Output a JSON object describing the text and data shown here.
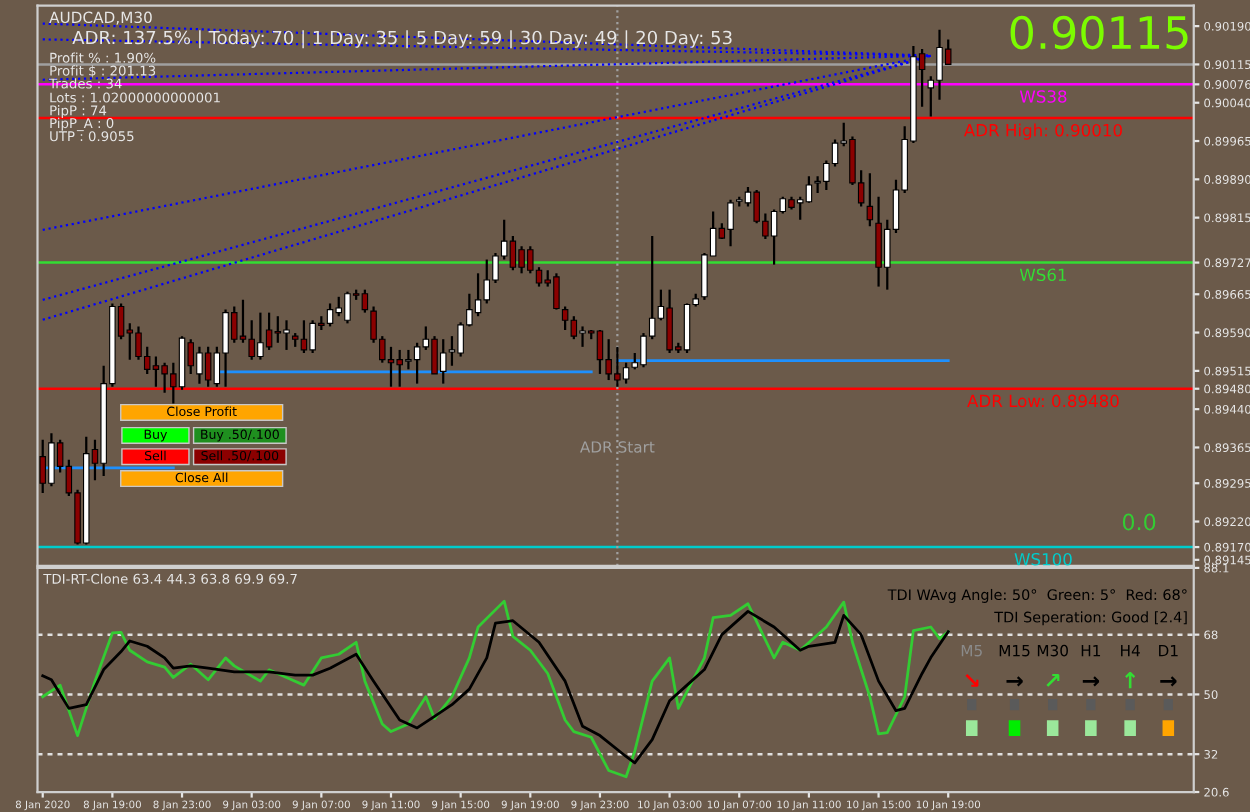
{
  "chart_data": [
    {
      "type": "candlestick",
      "x": [
        "2020-01-08T15:00",
        "2020-01-08T15:30",
        "2020-01-08T16:00",
        "2020-01-08T16:30",
        "2020-01-08T17:00",
        "2020-01-08T17:30",
        "2020-01-08T18:00",
        "2020-01-08T18:30",
        "2020-01-08T19:00",
        "2020-01-08T19:30",
        "2020-01-08T20:00",
        "2020-01-08T20:30",
        "2020-01-08T21:00",
        "2020-01-08T21:30",
        "2020-01-08T22:00",
        "2020-01-08T22:30",
        "2020-01-08T23:00",
        "2020-01-08T23:30",
        "2020-01-09T00:00",
        "2020-01-09T00:30",
        "2020-01-09T01:00",
        "2020-01-09T01:30",
        "2020-01-09T02:00",
        "2020-01-09T02:30",
        "2020-01-09T03:00",
        "2020-01-09T03:30",
        "2020-01-09T04:00",
        "2020-01-09T04:30",
        "2020-01-09T05:00",
        "2020-01-09T05:30",
        "2020-01-09T06:00",
        "2020-01-09T06:30",
        "2020-01-09T07:00",
        "2020-01-09T07:30",
        "2020-01-09T08:00",
        "2020-01-09T08:30",
        "2020-01-09T09:00",
        "2020-01-09T09:30",
        "2020-01-09T10:00",
        "2020-01-09T10:30",
        "2020-01-09T11:00",
        "2020-01-09T11:30",
        "2020-01-09T12:00",
        "2020-01-09T12:30",
        "2020-01-09T13:00",
        "2020-01-09T13:30",
        "2020-01-09T14:00",
        "2020-01-09T14:30",
        "2020-01-09T15:00",
        "2020-01-09T15:30",
        "2020-01-09T16:00",
        "2020-01-09T16:30",
        "2020-01-09T17:00",
        "2020-01-09T17:30",
        "2020-01-09T18:00",
        "2020-01-09T18:30",
        "2020-01-09T19:00",
        "2020-01-09T19:30",
        "2020-01-09T20:00",
        "2020-01-09T20:30",
        "2020-01-09T21:00",
        "2020-01-09T21:30",
        "2020-01-09T22:00",
        "2020-01-09T22:30",
        "2020-01-09T23:00",
        "2020-01-09T23:30",
        "2020-01-10T00:00",
        "2020-01-10T00:30",
        "2020-01-10T01:00",
        "2020-01-10T01:30",
        "2020-01-10T02:00",
        "2020-01-10T02:30",
        "2020-01-10T03:00",
        "2020-01-10T03:30",
        "2020-01-10T04:00",
        "2020-01-10T04:30",
        "2020-01-10T05:00",
        "2020-01-10T05:30",
        "2020-01-10T06:00",
        "2020-01-10T06:30",
        "2020-01-10T07:00",
        "2020-01-10T07:30",
        "2020-01-10T08:00",
        "2020-01-10T08:30",
        "2020-01-10T09:00",
        "2020-01-10T09:30",
        "2020-01-10T10:00",
        "2020-01-10T10:30",
        "2020-01-10T11:00",
        "2020-01-10T11:30",
        "2020-01-10T12:00",
        "2020-01-10T12:30",
        "2020-01-10T13:00",
        "2020-01-10T13:30",
        "2020-01-10T14:00",
        "2020-01-10T14:30",
        "2020-01-10T15:00",
        "2020-01-10T15:30",
        "2020-01-10T16:00",
        "2020-01-10T16:30",
        "2020-01-10T17:00",
        "2020-01-10T17:30",
        "2020-01-10T18:00",
        "2020-01-10T18:30",
        "2020-01-10T19:00"
      ],
      "ohlc": [
        [
          0.89347,
          0.8938,
          0.89276,
          0.89295
        ],
        [
          0.89295,
          0.89393,
          0.89289,
          0.89374
        ],
        [
          0.89374,
          0.8938,
          0.89316,
          0.89328
        ],
        [
          0.89328,
          0.89341,
          0.8927,
          0.89276
        ],
        [
          0.89276,
          0.89282,
          0.89175,
          0.89178
        ],
        [
          0.89178,
          0.89386,
          0.89175,
          0.89353
        ],
        [
          0.89361,
          0.8938,
          0.89301,
          0.89334
        ],
        [
          0.89334,
          0.89525,
          0.89309,
          0.8949
        ],
        [
          0.8949,
          0.89647,
          0.89484,
          0.89641
        ],
        [
          0.89641,
          0.89647,
          0.89577,
          0.89583
        ],
        [
          0.89595,
          0.89608,
          0.89537,
          0.89589
        ],
        [
          0.89589,
          0.89602,
          0.89537,
          0.89543
        ],
        [
          0.89543,
          0.89562,
          0.89509,
          0.89518
        ],
        [
          0.89525,
          0.89543,
          0.89484,
          0.89518
        ],
        [
          0.89525,
          0.89531,
          0.89472,
          0.89509
        ],
        [
          0.89509,
          0.89531,
          0.89451,
          0.89484
        ],
        [
          0.89484,
          0.89583,
          0.89478,
          0.89579
        ],
        [
          0.8957,
          0.89577,
          0.89509,
          0.89525
        ],
        [
          0.89509,
          0.89562,
          0.8949,
          0.8955
        ],
        [
          0.8955,
          0.89562,
          0.89484,
          0.89497
        ],
        [
          0.8949,
          0.89562,
          0.89484,
          0.8955
        ],
        [
          0.8955,
          0.89635,
          0.89484,
          0.89629
        ],
        [
          0.89629,
          0.89641,
          0.8957,
          0.89577
        ],
        [
          0.89583,
          0.89654,
          0.8957,
          0.89577
        ],
        [
          0.89577,
          0.89614,
          0.89537,
          0.89543
        ],
        [
          0.89543,
          0.89629,
          0.89537,
          0.8957
        ],
        [
          0.89595,
          0.89629,
          0.89556,
          0.89562
        ],
        [
          0.89592,
          0.89622,
          0.8957,
          0.89589
        ],
        [
          0.89589,
          0.89614,
          0.89556,
          0.89595
        ],
        [
          0.89583,
          0.89589,
          0.89562,
          0.89577
        ],
        [
          0.89577,
          0.89614,
          0.8955,
          0.89556
        ],
        [
          0.89556,
          0.89614,
          0.8955,
          0.89608
        ],
        [
          0.89608,
          0.89622,
          0.89595,
          0.89604
        ],
        [
          0.89608,
          0.89647,
          0.89602,
          0.89635
        ],
        [
          0.89629,
          0.8966,
          0.89622,
          0.89638
        ],
        [
          0.89614,
          0.8967,
          0.89608,
          0.89666
        ],
        [
          0.89666,
          0.89674,
          0.89654,
          0.89663
        ],
        [
          0.89666,
          0.89674,
          0.89629,
          0.89635
        ],
        [
          0.89632,
          0.89641,
          0.8957,
          0.89577
        ],
        [
          0.89577,
          0.89583,
          0.89531,
          0.89537
        ],
        [
          0.89537,
          0.89562,
          0.89484,
          0.89531
        ],
        [
          0.89537,
          0.89556,
          0.89484,
          0.89527
        ],
        [
          0.89534,
          0.89556,
          0.89518,
          0.89537
        ],
        [
          0.89537,
          0.8957,
          0.8949,
          0.89562
        ],
        [
          0.89562,
          0.89602,
          0.89556,
          0.89577
        ],
        [
          0.89577,
          0.89583,
          0.89509,
          0.89509
        ],
        [
          0.89514,
          0.89577,
          0.8949,
          0.8955
        ],
        [
          0.89552,
          0.89583,
          0.89525,
          0.89556
        ],
        [
          0.8955,
          0.8961,
          0.89543,
          0.89605
        ],
        [
          0.89605,
          0.89666,
          0.89602,
          0.89635
        ],
        [
          0.89629,
          0.89706,
          0.89622,
          0.89654
        ],
        [
          0.89654,
          0.89733,
          0.89647,
          0.89693
        ],
        [
          0.89693,
          0.89746,
          0.89687,
          0.8974
        ],
        [
          0.8974,
          0.89811,
          0.89733,
          0.89769
        ],
        [
          0.89769,
          0.89779,
          0.89712,
          0.89718
        ],
        [
          0.89752,
          0.89759,
          0.89706,
          0.89718
        ],
        [
          0.89752,
          0.89759,
          0.89706,
          0.89712
        ],
        [
          0.89712,
          0.89718,
          0.8968,
          0.89687
        ],
        [
          0.89693,
          0.89712,
          0.8968,
          0.89687
        ],
        [
          0.89699,
          0.89706,
          0.89635,
          0.89637
        ],
        [
          0.89635,
          0.89641,
          0.89595,
          0.89614
        ],
        [
          0.89614,
          0.89622,
          0.89577,
          0.89583
        ],
        [
          0.89589,
          0.89602,
          0.89562,
          0.89593
        ],
        [
          0.89593,
          0.89595,
          0.89577,
          0.89589
        ],
        [
          0.89593,
          0.89595,
          0.89509,
          0.89537
        ],
        [
          0.89537,
          0.89577,
          0.89497,
          0.89509
        ],
        [
          0.89509,
          0.89562,
          0.89484,
          0.89497
        ],
        [
          0.89499,
          0.89531,
          0.8949,
          0.89521
        ],
        [
          0.89522,
          0.8955,
          0.89518,
          0.89531
        ],
        [
          0.89527,
          0.89589,
          0.89522,
          0.89583
        ],
        [
          0.89583,
          0.89779,
          0.89577,
          0.89618
        ],
        [
          0.89618,
          0.89674,
          0.89614,
          0.89641
        ],
        [
          0.89638,
          0.89674,
          0.8955,
          0.89556
        ],
        [
          0.89562,
          0.8957,
          0.8955,
          0.89556
        ],
        [
          0.89556,
          0.89647,
          0.8955,
          0.89645
        ],
        [
          0.89645,
          0.89666,
          0.89641,
          0.89656
        ],
        [
          0.8966,
          0.89746,
          0.89654,
          0.89742
        ],
        [
          0.8974,
          0.89827,
          0.8974,
          0.89794
        ],
        [
          0.89794,
          0.89804,
          0.89773,
          0.89775
        ],
        [
          0.89792,
          0.8985,
          0.89759,
          0.89844
        ],
        [
          0.89847,
          0.89856,
          0.89837,
          0.8985
        ],
        [
          0.89844,
          0.89875,
          0.89837,
          0.89865
        ],
        [
          0.89865,
          0.89869,
          0.89804,
          0.89808
        ],
        [
          0.89808,
          0.89823,
          0.89773,
          0.89779
        ],
        [
          0.89779,
          0.89831,
          0.89723,
          0.89827
        ],
        [
          0.89827,
          0.89856,
          0.89823,
          0.89852
        ],
        [
          0.8985,
          0.89856,
          0.89831,
          0.89835
        ],
        [
          0.89844,
          0.89856,
          0.89811,
          0.8985
        ],
        [
          0.89846,
          0.89896,
          0.89844,
          0.89879
        ],
        [
          0.89883,
          0.89896,
          0.89863,
          0.89886
        ],
        [
          0.89886,
          0.89927,
          0.89869,
          0.89921
        ],
        [
          0.89921,
          0.89968,
          0.89915,
          0.89961
        ],
        [
          0.89961,
          0.90001,
          0.89955,
          0.89965
        ],
        [
          0.89968,
          0.89974,
          0.89879,
          0.89883
        ],
        [
          0.89883,
          0.89908,
          0.89837,
          0.89844
        ],
        [
          0.89837,
          0.89902,
          0.89798,
          0.89811
        ],
        [
          0.89804,
          0.89856,
          0.8968,
          0.89718
        ],
        [
          0.89718,
          0.89811,
          0.89674,
          0.89792
        ],
        [
          0.89792,
          0.89889,
          0.89785,
          0.89869
        ],
        [
          0.89869,
          0.89994,
          0.89863,
          0.89968
        ],
        [
          0.89965,
          0.90151,
          0.89961,
          0.9013
        ],
        [
          0.90136,
          0.90145,
          0.90032,
          0.90105
        ],
        [
          0.90069,
          0.90092,
          0.90013,
          0.90084
        ],
        [
          0.90084,
          0.90183,
          0.90046,
          0.90148
        ],
        [
          0.90145,
          0.90164,
          0.90114,
          0.90115
        ]
      ],
      "series": [
        {
          "type": "line",
          "color": "#1e90ff",
          "line_style": "solid",
          "x": [
            "2020-01-08T15:00",
            "2020-01-08T22:30"
          ],
          "values": [
            0.89325,
            0.89325
          ]
        },
        {
          "type": "line",
          "color": "#1e90ff",
          "line_style": "solid",
          "x": [
            "2020-01-09T01:00",
            "2020-01-09T22:30"
          ],
          "values": [
            0.89513,
            0.89513
          ]
        },
        {
          "type": "line",
          "color": "#1e90ff",
          "line_style": "solid",
          "x": [
            "2020-01-10T00:00",
            "2020-01-10T19:00"
          ],
          "values": [
            0.89535,
            0.89535
          ]
        },
        {
          "type": "line",
          "color": "#0000ff",
          "line_style": "dotted",
          "x": [
            "2020-01-08T15:00",
            "2020-01-10T18:00"
          ],
          "values": [
            0.90195,
            0.90132
          ]
        },
        {
          "type": "line",
          "color": "#0000ff",
          "line_style": "dotted",
          "x": [
            "2020-01-08T15:00",
            "2020-01-10T18:00"
          ],
          "values": [
            0.90164,
            0.90132
          ]
        },
        {
          "type": "line",
          "color": "#0000ff",
          "line_style": "dotted",
          "x": [
            "2020-01-08T15:00",
            "2020-01-10T18:00"
          ],
          "values": [
            0.90085,
            0.90132
          ]
        },
        {
          "type": "line",
          "color": "#0000ff",
          "line_style": "dotted",
          "x": [
            "2020-01-08T15:00",
            "2020-01-10T18:00"
          ],
          "values": [
            0.89791,
            0.90132
          ]
        },
        {
          "type": "line",
          "color": "#0000ff",
          "line_style": "dotted",
          "x": [
            "2020-01-08T15:00",
            "2020-01-10T18:00"
          ],
          "values": [
            0.89654,
            0.90132
          ]
        },
        {
          "type": "line",
          "color": "#0000ff",
          "line_style": "dotted",
          "x": [
            "2020-01-08T15:00",
            "2020-01-10T18:00"
          ],
          "values": [
            0.89615,
            0.90132
          ]
        }
      ],
      "xlim": [
        "2020-01-08T14:42",
        "2020-01-11T09:06"
      ],
      "ylim": [
        0.89133,
        0.9023
      ],
      "yticks": [
        0.89145,
        {
          "value": 0.8917,
          "label": "0.89170"
        },
        {
          "value": 0.8922,
          "label": "0.89220"
        },
        0.89295,
        0.89365,
        {
          "value": 0.8944,
          "label": "0.89440"
        },
        {
          "value": 0.8948,
          "label": "0.89480"
        },
        0.89515,
        {
          "value": 0.8959,
          "label": "0.89590"
        },
        0.89665,
        0.89727,
        0.89815,
        {
          "value": 0.8989,
          "label": "0.89890"
        },
        0.89965,
        {
          "value": 0.9004,
          "label": "0.90040"
        },
        0.90076,
        0.90115,
        {
          "value": 0.9019,
          "label": "0.90190"
        }
      ],
      "tick_labels": "y",
      "ref_lines": [
        {
          "axis": "y",
          "value": 0.90115,
          "label": null,
          "color": "#a0a0a0",
          "line_style": "solid"
        },
        {
          "axis": "y",
          "value": 0.90076,
          "label": "WS38",
          "color": "#ff00ff",
          "line_style": "solid"
        },
        {
          "axis": "y",
          "value": 0.9001,
          "label": "ADR High: 0.90010",
          "color": "#ff0000",
          "line_style": "solid"
        },
        {
          "axis": "y",
          "value": 0.89727,
          "label": "WS61",
          "color": "#33dd33",
          "line_style": "solid"
        },
        {
          "axis": "y",
          "value": 0.8948,
          "label": "ADR Low: 0.89480",
          "color": "#ff0000",
          "line_style": "solid"
        },
        {
          "axis": "y",
          "value": 0.8917,
          "label": "WS100",
          "color": "#00cccc",
          "line_style": "solid"
        },
        {
          "axis": "x",
          "value": "2020-01-10T00:00",
          "label": "ADR Start",
          "color": "#a0a0a0",
          "line_style": "dotted"
        }
      ],
      "annotations": [
        "AUDCAD,M30",
        "ADR: 137.5% | Today: 70 | 1 Day: 35 | 5 Day: 59 | 30 Day: 49 | 20 Day: 53",
        "Profit % : 1.90%",
        "Profit $ : 201.13",
        "Trades : 34",
        "Lots : 1.02000000000001",
        "PipP : 74",
        "PipP_A : 0",
        "UTP : 0.9055",
        "0.90115",
        "0.0",
        "Close Profit",
        "Buy",
        "Buy .50/.100",
        "Sell",
        "Sell .50/.100",
        "Close All"
      ]
    },
    {
      "type": "line",
      "series": [
        {
          "color": "#33cc33",
          "x": [
            "2020-01-08T15:00",
            "2020-01-08T16:00",
            "2020-01-08T17:00",
            "2020-01-08T18:00",
            "2020-01-08T19:00",
            "2020-01-08T19:30",
            "2020-01-08T20:00",
            "2020-01-08T21:00",
            "2020-01-08T22:00",
            "2020-01-08T22:30",
            "2020-01-08T23:30",
            "2020-01-09T00:30",
            "2020-01-09T01:30",
            "2020-01-09T02:00",
            "2020-01-09T03:30",
            "2020-01-09T04:00",
            "2020-01-09T05:00",
            "2020-01-09T06:00",
            "2020-01-09T07:00",
            "2020-01-09T08:00",
            "2020-01-09T09:00",
            "2020-01-09T09:30",
            "2020-01-09T10:30",
            "2020-01-09T11:00",
            "2020-01-09T12:00",
            "2020-01-09T13:00",
            "2020-01-09T13:30",
            "2020-01-09T14:30",
            "2020-01-09T15:30",
            "2020-01-09T16:00",
            "2020-01-09T17:30",
            "2020-01-09T18:00",
            "2020-01-09T19:00",
            "2020-01-09T20:00",
            "2020-01-09T21:00",
            "2020-01-09T21:30",
            "2020-01-09T22:30",
            "2020-01-09T23:30",
            "2020-01-10T00:30",
            "2020-01-10T01:00",
            "2020-01-10T02:00",
            "2020-01-10T03:00",
            "2020-01-10T03:30",
            "2020-01-10T05:00",
            "2020-01-10T05:30",
            "2020-01-10T06:30",
            "2020-01-10T07:30",
            "2020-01-10T09:00",
            "2020-01-10T09:30",
            "2020-01-10T10:30",
            "2020-01-10T12:00",
            "2020-01-10T13:00",
            "2020-01-10T13:30",
            "2020-01-10T14:30",
            "2020-01-10T15:00",
            "2020-01-10T15:30",
            "2020-01-10T16:30",
            "2020-01-10T17:00",
            "2020-01-10T18:00",
            "2020-01-10T18:30",
            "2020-01-10T19:00"
          ],
          "values": [
            49.3,
            52.8,
            37.6,
            54.0,
            68.5,
            68.7,
            63.3,
            59.8,
            58.2,
            55.1,
            59.1,
            54.4,
            61.0,
            58.6,
            54.0,
            57.4,
            55.1,
            52.8,
            61.0,
            62.1,
            65.7,
            54.0,
            41.1,
            38.8,
            41.1,
            49.3,
            42.7,
            49.3,
            61.0,
            70.3,
            78.1,
            67.5,
            63.3,
            56.3,
            42.3,
            38.8,
            37.1,
            27.1,
            25.2,
            32.9,
            54.0,
            61.0,
            45.8,
            61.0,
            73.1,
            73.8,
            77.3,
            61.0,
            65.7,
            63.3,
            70.3,
            77.8,
            65.7,
            49.3,
            38.1,
            38.5,
            49.3,
            69.2,
            70.3,
            66.8,
            68.9
          ]
        },
        {
          "color": "#000000",
          "x": [
            "2020-01-08T15:00",
            "2020-01-08T15:30",
            "2020-01-08T16:30",
            "2020-01-08T17:30",
            "2020-01-08T18:30",
            "2020-01-08T19:30",
            "2020-01-08T20:00",
            "2020-01-08T21:00",
            "2020-01-08T22:00",
            "2020-01-08T22:30",
            "2020-01-08T23:30",
            "2020-01-09T00:30",
            "2020-01-09T02:00",
            "2020-01-09T04:00",
            "2020-01-09T05:30",
            "2020-01-09T06:30",
            "2020-01-09T07:30",
            "2020-01-09T09:00",
            "2020-01-09T10:00",
            "2020-01-09T11:30",
            "2020-01-09T12:30",
            "2020-01-09T13:30",
            "2020-01-09T14:30",
            "2020-01-09T15:30",
            "2020-01-09T16:30",
            "2020-01-09T17:00",
            "2020-01-09T18:00",
            "2020-01-09T19:30",
            "2020-01-09T21:00",
            "2020-01-09T22:00",
            "2020-01-09T23:00",
            "2020-01-10T00:30",
            "2020-01-10T01:00",
            "2020-01-10T02:00",
            "2020-01-10T03:00",
            "2020-01-10T04:00",
            "2020-01-10T05:00",
            "2020-01-10T06:00",
            "2020-01-10T07:30",
            "2020-01-10T09:00",
            "2020-01-10T10:30",
            "2020-01-10T11:00",
            "2020-01-10T12:30",
            "2020-01-10T13:00",
            "2020-01-10T14:00",
            "2020-01-10T15:00",
            "2020-01-10T16:00",
            "2020-01-10T16:30",
            "2020-01-10T17:30",
            "2020-01-10T18:00",
            "2020-01-10T19:00"
          ],
          "values": [
            55.6,
            54.4,
            45.8,
            46.9,
            57.5,
            62.9,
            66.1,
            64.5,
            61.0,
            57.9,
            58.6,
            57.9,
            56.8,
            56.8,
            55.8,
            55.8,
            57.9,
            62.1,
            54.0,
            42.3,
            39.9,
            43.4,
            46.9,
            51.6,
            61.0,
            71.5,
            72.2,
            65.7,
            54.0,
            40.4,
            37.6,
            31.3,
            29.4,
            36.4,
            48.1,
            52.8,
            57.5,
            68.0,
            75.0,
            70.3,
            63.3,
            64.5,
            65.7,
            73.8,
            68.0,
            54.0,
            45.1,
            45.8,
            56.3,
            61.1,
            68.9
          ]
        }
      ],
      "xlim": [
        "2020-01-08T14:42",
        "2020-01-11T09:06"
      ],
      "xticks": [
        {
          "value": "2020-01-08T15:00",
          "label": "8 Jan 2020"
        },
        {
          "value": "2020-01-08T19:00",
          "label": "8 Jan 19:00"
        },
        {
          "value": "2020-01-08T23:00",
          "label": "8 Jan 23:00"
        },
        {
          "value": "2020-01-09T03:00",
          "label": "9 Jan 03:00"
        },
        {
          "value": "2020-01-09T07:00",
          "label": "9 Jan 07:00"
        },
        {
          "value": "2020-01-09T11:00",
          "label": "9 Jan 11:00"
        },
        {
          "value": "2020-01-09T15:00",
          "label": "9 Jan 15:00"
        },
        {
          "value": "2020-01-09T19:00",
          "label": "9 Jan 19:00"
        },
        {
          "value": "2020-01-09T23:00",
          "label": "9 Jan 23:00"
        },
        {
          "value": "2020-01-10T03:00",
          "label": "10 Jan 03:00"
        },
        {
          "value": "2020-01-10T07:00",
          "label": "10 Jan 07:00"
        },
        {
          "value": "2020-01-10T11:00",
          "label": "10 Jan 11:00"
        },
        {
          "value": "2020-01-10T15:00",
          "label": "10 Jan 15:00"
        },
        {
          "value": "2020-01-10T19:00",
          "label": "10 Jan 19:00"
        }
      ],
      "ylim": [
        20.6,
        88.1
      ],
      "yticks": [
        20.6,
        32,
        50,
        68,
        88.1
      ],
      "line_style": "solid",
      "ref_lines": [
        {
          "axis": "y",
          "value": 68,
          "label": null,
          "color": "#e0e0e0",
          "line_style": "dashed"
        },
        {
          "axis": "y",
          "value": 50,
          "label": null,
          "color": "#e0e0e0",
          "line_style": "dashed"
        },
        {
          "axis": "y",
          "value": 32,
          "label": null,
          "color": "#e0e0e0",
          "line_style": "dashed"
        }
      ],
      "annotations": [
        "TDI-RT-Clone 63.4 44.3 63.8 69.9 69.7",
        "TDI WAvg Angle: 50°  Green: 5°  Red: 68°",
        "TDI Seperation: Good [2.4]",
        "M5",
        "M15",
        "M30",
        "H1",
        "H4",
        "D1",
        "↘",
        "→",
        "↗",
        "→",
        "↑",
        "→"
      ]
    }
  ]
}
